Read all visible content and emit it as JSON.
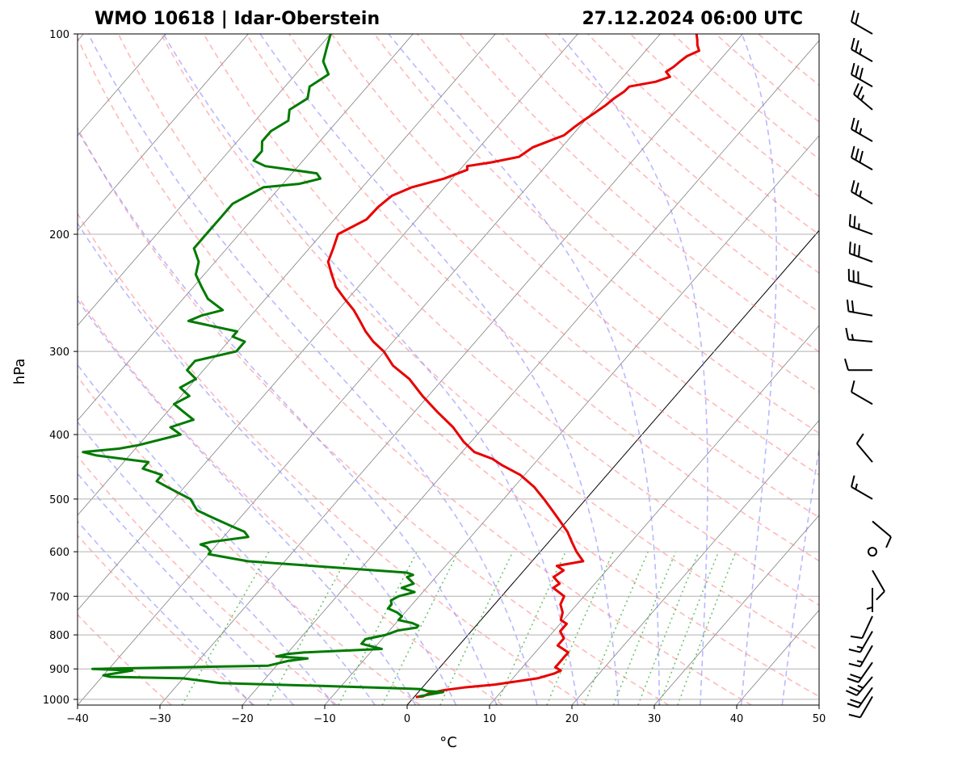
{
  "title_left": "WMO 10618 | Idar-Oberstein",
  "title_right": "27.12.2024 06:00 UTC",
  "chart_data": {
    "type": "skew-t",
    "xlabel": "°C",
    "ylabel": "hPa",
    "xlim": [
      -40,
      50
    ],
    "ylim": [
      1020,
      100
    ],
    "y_scale": "log",
    "x_ticks": [
      -40,
      -30,
      -20,
      -10,
      0,
      10,
      20,
      30,
      40,
      50
    ],
    "y_ticks": [
      1000,
      900,
      800,
      700,
      600,
      500,
      400,
      300,
      200,
      100
    ],
    "grid": true,
    "colors": {
      "temperature": "#e80000",
      "dewpoint": "#007a00",
      "dry_adiabats": "#ff8080",
      "moist_adiabats": "#8080ff",
      "mixing_ratio": "#40b040",
      "isotherms": "#808080",
      "zero_isotherm": "#000000",
      "barbs": "#000000"
    },
    "series": [
      {
        "key": "temperature",
        "p": [
          992,
          990,
          978,
          968,
          960,
          950,
          930,
          915,
          905,
          895,
          880,
          865,
          850,
          830,
          810,
          790,
          770,
          760,
          740,
          720,
          700,
          680,
          670,
          655,
          640,
          630,
          620,
          600,
          580,
          560,
          540,
          520,
          500,
          480,
          460,
          445,
          435,
          425,
          410,
          390,
          370,
          350,
          330,
          315,
          300,
          290,
          280,
          270,
          260,
          250,
          240,
          230,
          220,
          210,
          200,
          190,
          182,
          175,
          170,
          165,
          160,
          158,
          156,
          153,
          148,
          142,
          138,
          135,
          132,
          128,
          125,
          122,
          120,
          118,
          116,
          114,
          112,
          110,
          108,
          106,
          104,
          102,
          100
        ],
        "t": [
          0.2,
          1.0,
          1.5,
          3.0,
          5.0,
          8.5,
          13.0,
          14.5,
          15.0,
          14.0,
          14.0,
          14.0,
          14.0,
          12.0,
          12.0,
          10.8,
          10.8,
          9.7,
          9.1,
          8.0,
          7.6,
          5.4,
          5.7,
          4.3,
          4.8,
          3.5,
          6.2,
          4.4,
          2.8,
          1.2,
          -0.8,
          -2.9,
          -5.1,
          -7.5,
          -10.5,
          -13.7,
          -15.6,
          -18.5,
          -20.9,
          -23.7,
          -27.2,
          -30.7,
          -34.1,
          -37.5,
          -40.1,
          -42.4,
          -44.4,
          -46.2,
          -48.1,
          -50.4,
          -52.7,
          -54.5,
          -56.3,
          -57.1,
          -58.0,
          -56.1,
          -56.0,
          -55.5,
          -54.0,
          -51.0,
          -49.1,
          -49.5,
          -47.0,
          -44.2,
          -43.5,
          -41.0,
          -40.6,
          -40.2,
          -39.7,
          -39.1,
          -38.8,
          -38.3,
          -38.2,
          -35.5,
          -34.3,
          -35.3,
          -34.9,
          -34.7,
          -34.4,
          -33.5,
          -34.3,
          -34.9,
          -35.6
        ]
      },
      {
        "key": "dewpoint",
        "p": [
          990,
          975,
          972,
          965,
          955,
          945,
          930,
          925,
          920,
          905,
          900,
          890,
          875,
          868,
          862,
          855,
          850,
          840,
          825,
          812,
          800,
          788,
          780,
          775,
          768,
          760,
          750,
          740,
          730,
          720,
          710,
          700,
          690,
          680,
          670,
          660,
          655,
          650,
          645,
          620,
          605,
          600,
          590,
          585,
          580,
          570,
          560,
          550,
          540,
          530,
          520,
          510,
          500,
          490,
          480,
          470,
          460,
          450,
          440,
          430,
          425,
          420,
          415,
          400,
          390,
          380,
          370,
          360,
          350,
          340,
          330,
          320,
          310,
          300,
          290,
          285,
          280,
          270,
          265,
          260,
          250,
          240,
          230,
          220,
          210,
          200,
          190,
          180,
          170,
          168,
          165,
          162,
          158,
          155,
          150,
          145,
          140,
          135,
          130,
          125,
          120,
          115,
          110,
          105,
          100
        ],
        "t": [
          0.5,
          3.0,
          1.0,
          0.0,
          -12.0,
          -25.0,
          -30.0,
          -39.0,
          -40.0,
          -37.0,
          -42.0,
          -21.0,
          -19.0,
          -17.0,
          -21.0,
          -20.0,
          -18.0,
          -9.0,
          -12.0,
          -12.0,
          -10.0,
          -9.0,
          -7.0,
          -7.0,
          -8.0,
          -10.0,
          -10.0,
          -11.0,
          -12.5,
          -12.5,
          -13.0,
          -12.5,
          -11.0,
          -13.0,
          -12.0,
          -13.0,
          -13.5,
          -13.0,
          -14.0,
          -34.5,
          -40.0,
          -40.0,
          -41.0,
          -42.0,
          -41.0,
          -37.0,
          -38.0,
          -40.0,
          -42.0,
          -44.0,
          -46.0,
          -47.0,
          -48.0,
          -50.0,
          -52.0,
          -54.0,
          -54.0,
          -57.0,
          -57.0,
          -64.0,
          -66.0,
          -62.0,
          -60.0,
          -56.0,
          -58.0,
          -56.0,
          -58.0,
          -60.0,
          -59.0,
          -61.0,
          -60.0,
          -62.0,
          -62.0,
          -58.0,
          -58.0,
          -60.0,
          -60.0,
          -67.0,
          -66.0,
          -64.0,
          -67.0,
          -69.0,
          -71.0,
          -72.0,
          -74.0,
          -74.0,
          -74.0,
          -74.0,
          -72.0,
          -68.0,
          -66.0,
          -67.0,
          -74.0,
          -76.0,
          -76.0,
          -77.0,
          -77.0,
          -76.0,
          -77.0,
          -76.0,
          -77.0,
          -76.0,
          -78.0,
          -79.0,
          -80.0
        ]
      }
    ],
    "wind_barbs": [
      {
        "p": 990,
        "dir": 210,
        "spd": 10
      },
      {
        "p": 960,
        "dir": 215,
        "spd": 20
      },
      {
        "p": 925,
        "dir": 220,
        "spd": 25
      },
      {
        "p": 880,
        "dir": 215,
        "spd": 20
      },
      {
        "p": 830,
        "dir": 210,
        "spd": 15
      },
      {
        "p": 790,
        "dir": 210,
        "spd": 15
      },
      {
        "p": 750,
        "dir": 205,
        "spd": 10
      },
      {
        "p": 680,
        "dir": 180,
        "spd": 5
      },
      {
        "p": 640,
        "dir": 150,
        "spd": 10
      },
      {
        "p": 600,
        "dir": 0,
        "spd": 0
      },
      {
        "p": 540,
        "dir": 130,
        "spd": 10
      },
      {
        "p": 500,
        "dir": 300,
        "spd": 15
      },
      {
        "p": 440,
        "dir": 320,
        "spd": 10
      },
      {
        "p": 360,
        "dir": 300,
        "spd": 10
      },
      {
        "p": 320,
        "dir": 270,
        "spd": 10
      },
      {
        "p": 290,
        "dir": 275,
        "spd": 15
      },
      {
        "p": 265,
        "dir": 280,
        "spd": 20
      },
      {
        "p": 240,
        "dir": 285,
        "spd": 30
      },
      {
        "p": 220,
        "dir": 290,
        "spd": 30
      },
      {
        "p": 200,
        "dir": 290,
        "spd": 25
      },
      {
        "p": 180,
        "dir": 300,
        "spd": 25
      },
      {
        "p": 160,
        "dir": 300,
        "spd": 30
      },
      {
        "p": 145,
        "dir": 300,
        "spd": 25
      },
      {
        "p": 130,
        "dir": 310,
        "spd": 25
      },
      {
        "p": 120,
        "dir": 300,
        "spd": 30
      },
      {
        "p": 110,
        "dir": 300,
        "spd": 25
      },
      {
        "p": 100,
        "dir": 300,
        "spd": 20
      }
    ]
  }
}
